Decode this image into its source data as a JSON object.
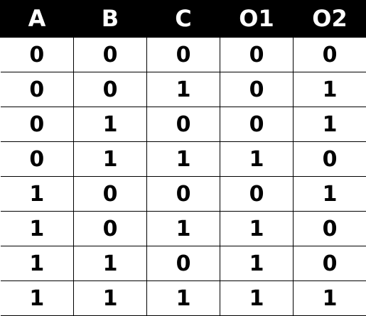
{
  "table": {
    "headers": [
      "A",
      "B",
      "C",
      "O1",
      "O2"
    ],
    "rows": [
      [
        "0",
        "0",
        "0",
        "0",
        "0"
      ],
      [
        "0",
        "0",
        "1",
        "0",
        "1"
      ],
      [
        "0",
        "1",
        "0",
        "0",
        "1"
      ],
      [
        "0",
        "1",
        "1",
        "1",
        "0"
      ],
      [
        "1",
        "0",
        "0",
        "0",
        "1"
      ],
      [
        "1",
        "0",
        "1",
        "1",
        "0"
      ],
      [
        "1",
        "1",
        "0",
        "1",
        "0"
      ],
      [
        "1",
        "1",
        "1",
        "1",
        "1"
      ]
    ]
  },
  "colors": {
    "header_background": "#000000",
    "header_text": "#ffffff",
    "cell_text": "#000000",
    "grid_lines": "#000000"
  }
}
